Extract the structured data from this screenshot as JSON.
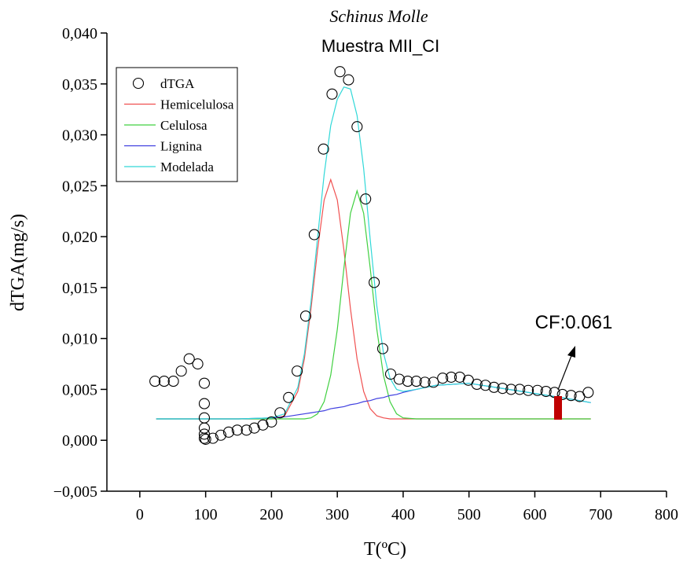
{
  "chart_data": {
    "type": "line",
    "title": "Schinus Molle",
    "subtitle": "Muestra MII_CI",
    "x_label": "T(ºC)",
    "y_label": "dTGA(mg/s)",
    "annotation": "CF:0.061",
    "legend": "upper left",
    "xlim": [
      -50,
      800
    ],
    "xticks": [
      0,
      100,
      200,
      300,
      400,
      500,
      600,
      700,
      800
    ],
    "ylim": [
      -0.005,
      0.04
    ],
    "yticks": [
      {
        "value": -0.005,
        "label": "−0,005"
      },
      {
        "value": 0,
        "label": "0,000"
      },
      {
        "value": 0.005,
        "label": "0,005"
      },
      {
        "value": 0.01,
        "label": "0,010"
      },
      {
        "value": 0.015,
        "label": "0,015"
      },
      {
        "value": 0.02,
        "label": "0,020"
      },
      {
        "value": 0.025,
        "label": "0,025"
      },
      {
        "value": 0.03,
        "label": "0,030"
      },
      {
        "value": 0.035,
        "label": "0,035"
      },
      {
        "value": 0.04,
        "label": "0,040"
      }
    ],
    "series": [
      {
        "name": "dTGA",
        "type": "scatter",
        "color": "#000000",
        "x": [
          23,
          37,
          51,
          63,
          75,
          88,
          98,
          98,
          98,
          98,
          98,
          98,
          100,
          111,
          123,
          135,
          148,
          162,
          174,
          187,
          200,
          213,
          226,
          239,
          252,
          265,
          279,
          292,
          304,
          317,
          330,
          343,
          356,
          369,
          381,
          394,
          407,
          420,
          433,
          446,
          460,
          473,
          486,
          499,
          512,
          525,
          538,
          551,
          564,
          577,
          590,
          604,
          617,
          630,
          642,
          655,
          668,
          681
        ],
        "values": [
          0.0058,
          0.0058,
          0.0058,
          0.0068,
          0.008,
          0.0075,
          0.0056,
          0.0036,
          0.0022,
          0.0012,
          0.0006,
          0.0002,
          0.0001,
          0.0002,
          0.0005,
          0.0008,
          0.001,
          0.001,
          0.0012,
          0.0015,
          0.0018,
          0.0027,
          0.0042,
          0.0068,
          0.0122,
          0.0202,
          0.0286,
          0.034,
          0.0362,
          0.0354,
          0.0308,
          0.0237,
          0.0155,
          0.009,
          0.0065,
          0.006,
          0.0058,
          0.0058,
          0.0057,
          0.0057,
          0.0061,
          0.0062,
          0.0062,
          0.0059,
          0.0055,
          0.0054,
          0.0052,
          0.0051,
          0.005,
          0.005,
          0.0049,
          0.0049,
          0.0048,
          0.0047,
          0.0045,
          0.0044,
          0.0043,
          0.0047
        ]
      },
      {
        "name": "Hemicelulosa",
        "type": "line",
        "color": "#f05050",
        "x": [
          25,
          100,
          150,
          200,
          220,
          240,
          250,
          260,
          270,
          280,
          290,
          300,
          310,
          320,
          330,
          340,
          350,
          360,
          370,
          380,
          390,
          400,
          420,
          450,
          500,
          550,
          600,
          650,
          685
        ],
        "values": [
          0.0021,
          0.0021,
          0.0021,
          0.0021,
          0.0024,
          0.0048,
          0.008,
          0.0129,
          0.0187,
          0.0236,
          0.0256,
          0.0236,
          0.0187,
          0.0129,
          0.008,
          0.0048,
          0.0031,
          0.0024,
          0.0022,
          0.0021,
          0.0021,
          0.0021,
          0.0021,
          0.0021,
          0.0021,
          0.0021,
          0.0021,
          0.0021,
          0.0021
        ]
      },
      {
        "name": "Celulosa",
        "type": "line",
        "color": "#40d040",
        "x": [
          25,
          100,
          150,
          200,
          220,
          240,
          250,
          260,
          270,
          280,
          290,
          300,
          310,
          320,
          330,
          340,
          350,
          360,
          370,
          380,
          390,
          400,
          420,
          450,
          500,
          550,
          600,
          650,
          685
        ],
        "values": [
          0.0021,
          0.0021,
          0.0021,
          0.0021,
          0.0021,
          0.0021,
          0.0021,
          0.0022,
          0.0026,
          0.0038,
          0.0064,
          0.0109,
          0.0169,
          0.0223,
          0.0245,
          0.0223,
          0.0169,
          0.0109,
          0.0064,
          0.0038,
          0.0026,
          0.0022,
          0.0021,
          0.0021,
          0.0021,
          0.0021,
          0.0021,
          0.0021,
          0.0021
        ]
      },
      {
        "name": "Lignina",
        "type": "line",
        "color": "#4040e0",
        "x": [
          25,
          100,
          150,
          200,
          220,
          240,
          250,
          260,
          270,
          280,
          290,
          300,
          310,
          320,
          330,
          340,
          350,
          360,
          370,
          380,
          390,
          400,
          420,
          450,
          500,
          550,
          600,
          650,
          685
        ],
        "values": [
          0.0021,
          0.0021,
          0.0021,
          0.0022,
          0.0023,
          0.0025,
          0.0026,
          0.0027,
          0.0028,
          0.0029,
          0.0031,
          0.0032,
          0.0033,
          0.0035,
          0.0036,
          0.0038,
          0.0039,
          0.0041,
          0.0042,
          0.0044,
          0.0045,
          0.0047,
          0.005,
          0.0054,
          0.0056,
          0.0051,
          0.0046,
          0.0041,
          0.0037
        ]
      },
      {
        "name": "Modelada",
        "type": "line",
        "color": "#30d8d8",
        "x": [
          25,
          100,
          150,
          200,
          220,
          240,
          250,
          260,
          270,
          280,
          290,
          300,
          310,
          320,
          330,
          340,
          350,
          360,
          370,
          380,
          390,
          400,
          420,
          450,
          500,
          550,
          600,
          650,
          685
        ],
        "values": [
          0.0021,
          0.0021,
          0.0021,
          0.0022,
          0.0026,
          0.0052,
          0.0085,
          0.0136,
          0.0199,
          0.0261,
          0.0309,
          0.0335,
          0.0347,
          0.0345,
          0.0319,
          0.0267,
          0.0197,
          0.0132,
          0.0086,
          0.0061,
          0.005,
          0.0048,
          0.005,
          0.0054,
          0.0056,
          0.0051,
          0.0046,
          0.0041,
          0.0037
        ]
      }
    ]
  }
}
